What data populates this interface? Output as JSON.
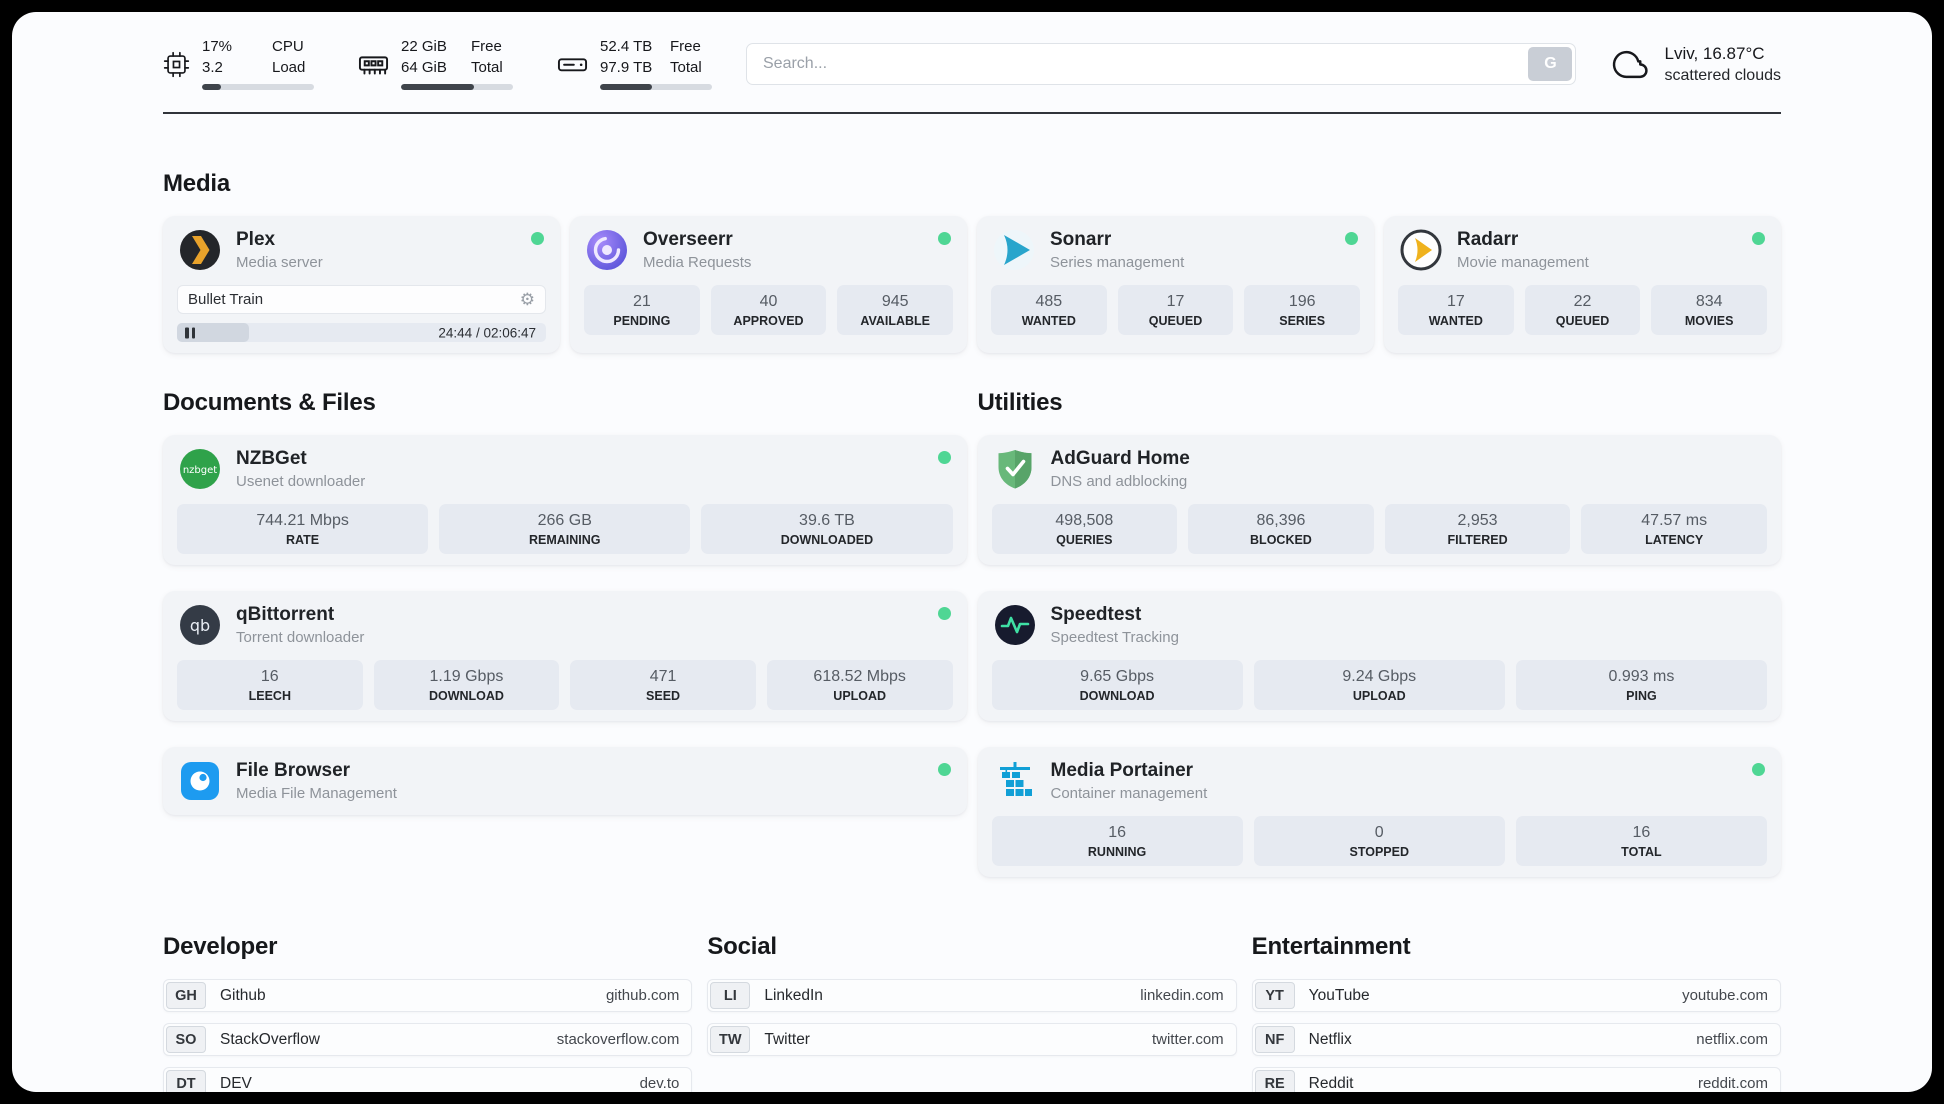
{
  "topbar": {
    "cpu": {
      "value": "17%",
      "sub": "3.2",
      "label_top": "CPU",
      "label_bottom": "Load",
      "percent": 17
    },
    "ram": {
      "value": "22 GiB",
      "sub": "64 GiB",
      "label_top": "Free",
      "label_bottom": "Total",
      "percent": 65
    },
    "disk": {
      "value": "52.4 TB",
      "sub": "97.9 TB",
      "label_top": "Free",
      "label_bottom": "Total",
      "percent": 46
    },
    "search": {
      "placeholder": "Search...",
      "button_label": "G"
    },
    "weather": {
      "location": "Lviv, 16.87°C",
      "condition": "scattered clouds"
    }
  },
  "colors": {
    "status_online": "#4fd694",
    "card_bg": "#f2f4f7",
    "stat_bg": "#e6eaf1"
  },
  "glyphs": {
    "gear": "⚙",
    "nzbget_logo_text": "nzbget",
    "qbittorrent_logo_text": "qb"
  },
  "sections": {
    "media": {
      "title": "Media",
      "plex": {
        "name": "Plex",
        "desc": "Media server",
        "now_playing": "Bullet Train",
        "time": "24:44 / 02:06:47",
        "progress_percent": 19.5
      },
      "overseerr": {
        "name": "Overseerr",
        "desc": "Media Requests",
        "stats": [
          {
            "value": "21",
            "label": "PENDING"
          },
          {
            "value": "40",
            "label": "APPROVED"
          },
          {
            "value": "945",
            "label": "AVAILABLE"
          }
        ]
      },
      "sonarr": {
        "name": "Sonarr",
        "desc": "Series management",
        "stats": [
          {
            "value": "485",
            "label": "WANTED"
          },
          {
            "value": "17",
            "label": "QUEUED"
          },
          {
            "value": "196",
            "label": "SERIES"
          }
        ]
      },
      "radarr": {
        "name": "Radarr",
        "desc": "Movie management",
        "stats": [
          {
            "value": "17",
            "label": "WANTED"
          },
          {
            "value": "22",
            "label": "QUEUED"
          },
          {
            "value": "834",
            "label": "MOVIES"
          }
        ]
      }
    },
    "documents": {
      "title": "Documents & Files",
      "nzbget": {
        "name": "NZBGet",
        "desc": "Usenet downloader",
        "stats": [
          {
            "value": "744.21 Mbps",
            "label": "RATE"
          },
          {
            "value": "266 GB",
            "label": "REMAINING"
          },
          {
            "value": "39.6 TB",
            "label": "DOWNLOADED"
          }
        ]
      },
      "qbittorrent": {
        "name": "qBittorrent",
        "desc": "Torrent downloader",
        "stats": [
          {
            "value": "16",
            "label": "LEECH"
          },
          {
            "value": "1.19 Gbps",
            "label": "DOWNLOAD"
          },
          {
            "value": "471",
            "label": "SEED"
          },
          {
            "value": "618.52 Mbps",
            "label": "UPLOAD"
          }
        ]
      },
      "filebrowser": {
        "name": "File Browser",
        "desc": "Media File Management"
      }
    },
    "utilities": {
      "title": "Utilities",
      "adguard": {
        "name": "AdGuard Home",
        "desc": "DNS and adblocking",
        "stats": [
          {
            "value": "498,508",
            "label": "QUERIES"
          },
          {
            "value": "86,396",
            "label": "BLOCKED"
          },
          {
            "value": "2,953",
            "label": "FILTERED"
          },
          {
            "value": "47.57 ms",
            "label": "LATENCY"
          }
        ]
      },
      "speedtest": {
        "name": "Speedtest",
        "desc": "Speedtest Tracking",
        "stats": [
          {
            "value": "9.65 Gbps",
            "label": "DOWNLOAD"
          },
          {
            "value": "9.24 Gbps",
            "label": "UPLOAD"
          },
          {
            "value": "0.993 ms",
            "label": "PING"
          }
        ]
      },
      "portainer": {
        "name": "Media Portainer",
        "desc": "Container management",
        "stats": [
          {
            "value": "16",
            "label": "RUNNING"
          },
          {
            "value": "0",
            "label": "STOPPED"
          },
          {
            "value": "16",
            "label": "TOTAL"
          }
        ]
      }
    },
    "developer": {
      "title": "Developer",
      "links": [
        {
          "abbr": "GH",
          "name": "Github",
          "domain": "github.com"
        },
        {
          "abbr": "SO",
          "name": "StackOverflow",
          "domain": "stackoverflow.com"
        },
        {
          "abbr": "DT",
          "name": "DEV",
          "domain": "dev.to"
        }
      ]
    },
    "social": {
      "title": "Social",
      "links": [
        {
          "abbr": "LI",
          "name": "LinkedIn",
          "domain": "linkedin.com"
        },
        {
          "abbr": "TW",
          "name": "Twitter",
          "domain": "twitter.com"
        }
      ]
    },
    "entertainment": {
      "title": "Entertainment",
      "links": [
        {
          "abbr": "YT",
          "name": "YouTube",
          "domain": "youtube.com"
        },
        {
          "abbr": "NF",
          "name": "Netflix",
          "domain": "netflix.com"
        },
        {
          "abbr": "RE",
          "name": "Reddit",
          "domain": "reddit.com"
        }
      ]
    }
  }
}
